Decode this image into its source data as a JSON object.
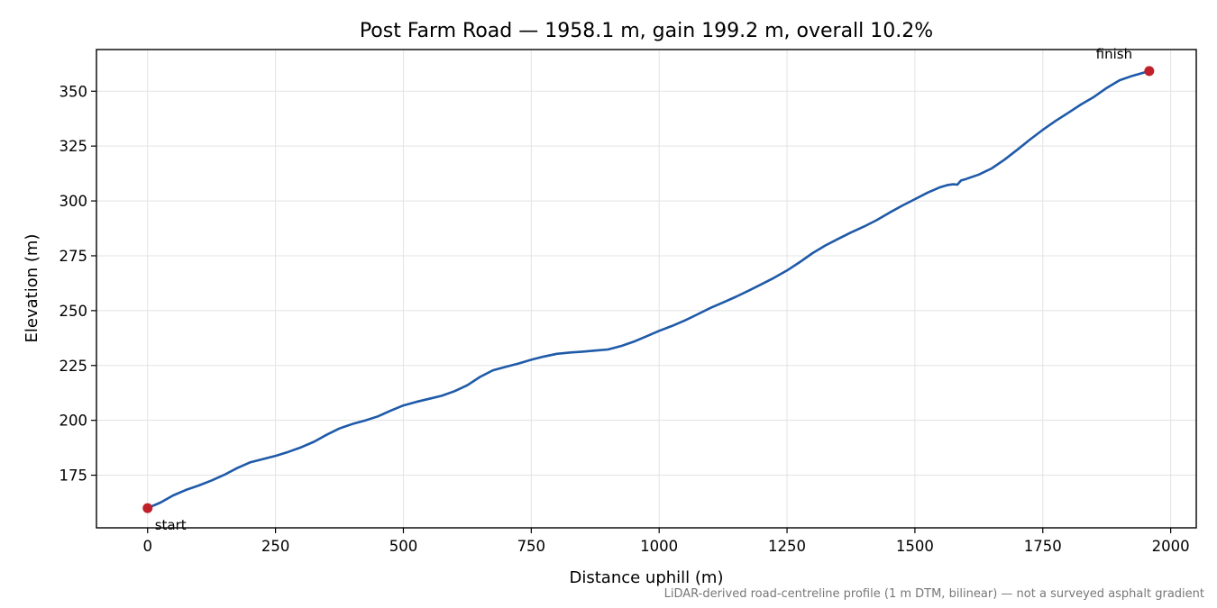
{
  "chart_data": {
    "type": "line",
    "title": "Post Farm Road — 1958.1 m, gain 199.2 m, overall 10.2%",
    "xlabel": "Distance uphill (m)",
    "ylabel": "Elevation (m)",
    "xlim": [
      -100,
      2050
    ],
    "ylim": [
      151,
      369
    ],
    "xticks": [
      0,
      250,
      500,
      750,
      1000,
      1250,
      1500,
      1750,
      2000
    ],
    "yticks": [
      175,
      200,
      225,
      250,
      275,
      300,
      325,
      350
    ],
    "xtick_labels": [
      "0",
      "250",
      "500",
      "750",
      "1000",
      "1250",
      "1500",
      "1750",
      "2000"
    ],
    "ytick_labels": [
      "175",
      "200",
      "225",
      "250",
      "275",
      "300",
      "325",
      "350"
    ],
    "grid": true,
    "line_color": "#1f5aa8",
    "marker_color": "#c0202a",
    "series": [
      {
        "x": [
          0,
          25,
          50,
          75,
          100,
          125,
          150,
          175,
          200,
          225,
          250,
          275,
          300,
          325,
          350,
          375,
          400,
          425,
          450,
          475,
          500,
          525,
          550,
          575,
          600,
          625,
          650,
          675,
          700,
          725,
          750,
          775,
          800,
          825,
          850,
          875,
          900,
          925,
          950,
          975,
          1000,
          1025,
          1050,
          1075,
          1100,
          1125,
          1150,
          1175,
          1200,
          1225,
          1250,
          1275,
          1300,
          1325,
          1350,
          1375,
          1400,
          1425,
          1450,
          1475,
          1500,
          1525,
          1550,
          1565,
          1575,
          1583,
          1590,
          1600,
          1625,
          1650,
          1675,
          1700,
          1725,
          1750,
          1775,
          1800,
          1825,
          1850,
          1875,
          1900,
          1925,
          1958.1
        ],
        "y": [
          160,
          162.5,
          165.8,
          168.3,
          170.3,
          172.6,
          175.2,
          178.2,
          180.8,
          182.3,
          183.8,
          185.6,
          187.7,
          190.2,
          193.4,
          196.3,
          198.3,
          199.9,
          201.8,
          204.4,
          206.8,
          208.4,
          209.8,
          211.2,
          213.3,
          216.0,
          219.8,
          222.8,
          224.4,
          225.9,
          227.6,
          229.1,
          230.3,
          230.9,
          231.3,
          231.8,
          232.3,
          233.8,
          235.8,
          238.3,
          240.8,
          243.0,
          245.5,
          248.3,
          251.2,
          253.7,
          256.3,
          259.1,
          262.0,
          265.0,
          268.3,
          272.1,
          276.2,
          279.7,
          282.7,
          285.6,
          288.3,
          291.2,
          294.6,
          297.8,
          300.8,
          303.8,
          306.3,
          307.3,
          307.6,
          307.4,
          309.3,
          310.0,
          312.0,
          314.8,
          318.8,
          323.3,
          328.0,
          332.4,
          336.5,
          340.2,
          344.0,
          347.4,
          351.5,
          355.0,
          357.0,
          359.2
        ]
      }
    ],
    "annotations": {
      "start": {
        "label": "start",
        "x": 0,
        "y": 160
      },
      "finish": {
        "label": "finish",
        "x": 1958.1,
        "y": 359.2
      }
    },
    "footnote": "LiDAR-derived road-centreline profile (1 m DTM, bilinear) — not a surveyed asphalt gradient"
  }
}
